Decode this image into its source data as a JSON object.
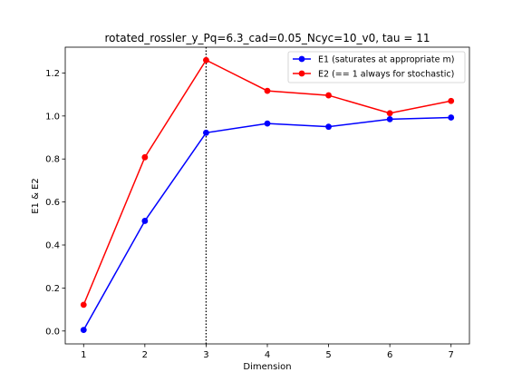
{
  "chart_data": {
    "type": "line",
    "title": "rotated_rossler_y_Pq=6.3_cad=0.05_Ncyc=10_v0, tau = 11",
    "xlabel": "Dimension",
    "ylabel": "E1 & E2",
    "x": [
      1,
      2,
      3,
      4,
      5,
      6,
      7
    ],
    "xlim": [
      0.7,
      7.3
    ],
    "ylim": [
      -0.06,
      1.32
    ],
    "xticks": [
      "1",
      "2",
      "3",
      "4",
      "5",
      "6",
      "7"
    ],
    "yticks": [
      "0.0",
      "0.2",
      "0.4",
      "0.6",
      "0.8",
      "1.0",
      "1.2"
    ],
    "vline": {
      "x": 3,
      "style": "dotted",
      "color": "#000000"
    },
    "grid": false,
    "legend_position": "top-right",
    "series": [
      {
        "name": "E1 (saturates at appropriate m)",
        "color": "#0000ff",
        "values": [
          0.005,
          0.512,
          0.922,
          0.965,
          0.95,
          0.985,
          0.993
        ]
      },
      {
        "name": "E2 (== 1 always for stochastic)",
        "color": "#ff0000",
        "values": [
          0.122,
          0.808,
          1.26,
          1.117,
          1.096,
          1.013,
          1.07
        ]
      }
    ]
  }
}
